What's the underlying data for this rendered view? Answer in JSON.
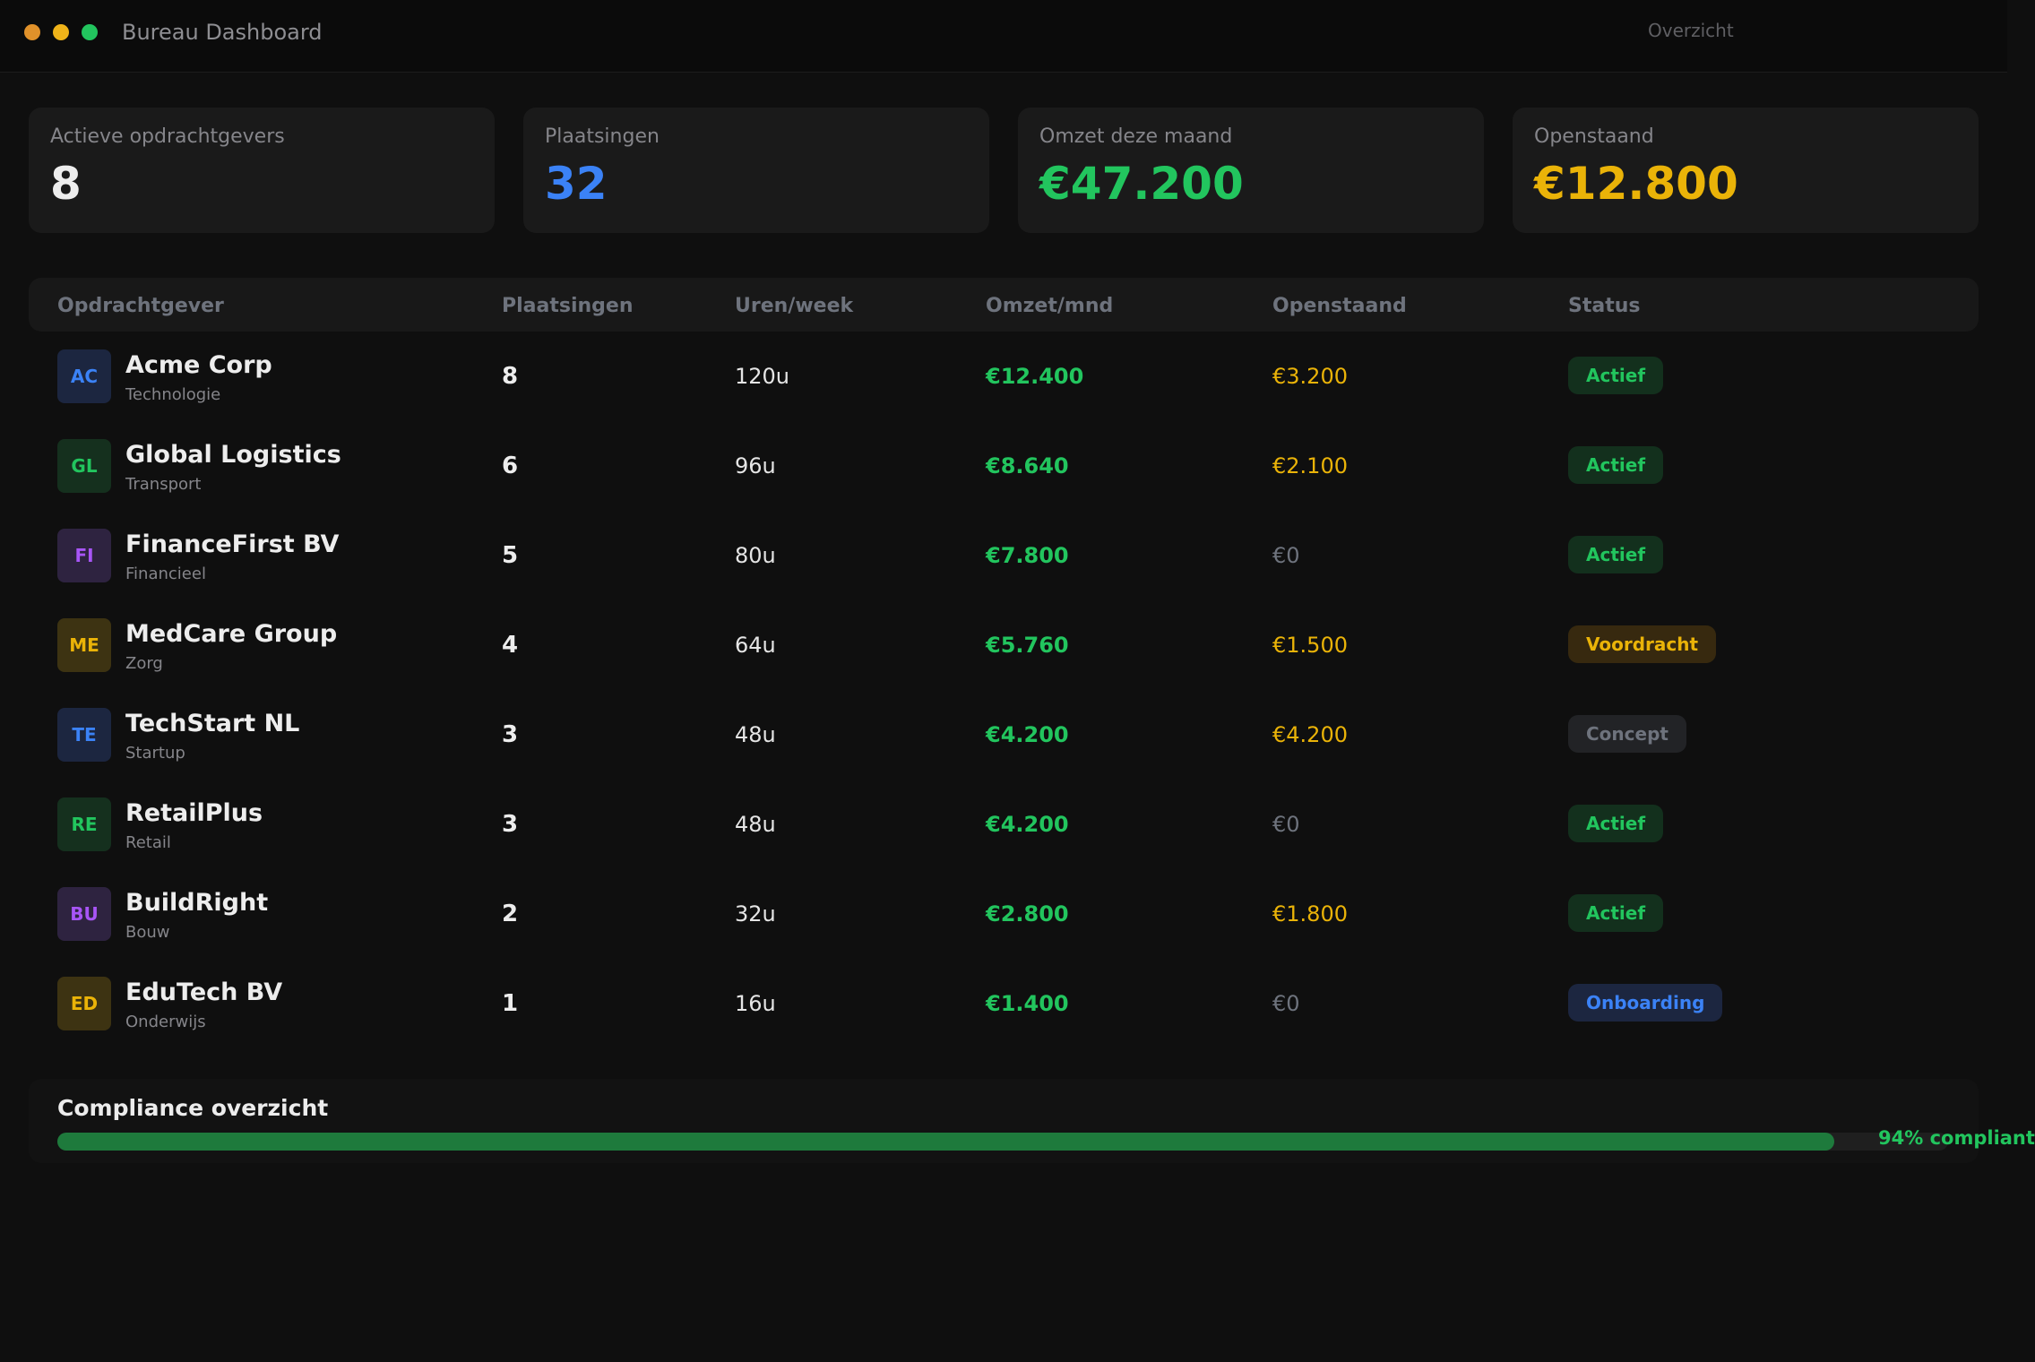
{
  "window": {
    "title": "Bureau Dashboard",
    "tab": "Overzicht"
  },
  "kpis": [
    {
      "label": "Actieve opdrachtgevers",
      "value": "8",
      "color": "#ededed"
    },
    {
      "label": "Plaatsingen",
      "value": "32",
      "color": "#3b82f6"
    },
    {
      "label": "Omzet deze maand",
      "value": "€47.200",
      "color": "#22c55e"
    },
    {
      "label": "Openstaand",
      "value": "€12.800",
      "color": "#eab308"
    }
  ],
  "table": {
    "headers": [
      "Opdrachtgever",
      "Plaatsingen",
      "Uren/week",
      "Omzet/mnd",
      "Openstaand",
      "Status"
    ],
    "rows": [
      {
        "initials": "AC",
        "name": "Acme Corp",
        "sector": "Technologie",
        "placements": "8",
        "hours": "120u",
        "revenue": "€12.400",
        "outstanding": "€3.200",
        "status": "Actief",
        "avatar_color": "#3b82f6",
        "avatar_bg": "#1c2640",
        "outstanding_color": "#eab308",
        "status_color": "#22c55e",
        "status_bg": "#13301d"
      },
      {
        "initials": "GL",
        "name": "Global Logistics",
        "sector": "Transport",
        "placements": "6",
        "hours": "96u",
        "revenue": "€8.640",
        "outstanding": "€2.100",
        "status": "Actief",
        "avatar_color": "#22c55e",
        "avatar_bg": "#15301e",
        "outstanding_color": "#eab308",
        "status_color": "#22c55e",
        "status_bg": "#13301d"
      },
      {
        "initials": "FI",
        "name": "FinanceFirst BV",
        "sector": "Financieel",
        "placements": "5",
        "hours": "80u",
        "revenue": "€7.800",
        "outstanding": "€0",
        "status": "Actief",
        "avatar_color": "#a855f7",
        "avatar_bg": "#2e2340",
        "outstanding_color": "#6e737d",
        "status_color": "#22c55e",
        "status_bg": "#13301d"
      },
      {
        "initials": "ME",
        "name": "MedCare Group",
        "sector": "Zorg",
        "placements": "4",
        "hours": "64u",
        "revenue": "€5.760",
        "outstanding": "€1.500",
        "status": "Voordracht",
        "avatar_color": "#eab308",
        "avatar_bg": "#3d3312",
        "outstanding_color": "#eab308",
        "status_color": "#eab308",
        "status_bg": "#37290f"
      },
      {
        "initials": "TE",
        "name": "TechStart NL",
        "sector": "Startup",
        "placements": "3",
        "hours": "48u",
        "revenue": "€4.200",
        "outstanding": "€4.200",
        "status": "Concept",
        "avatar_color": "#3b82f6",
        "avatar_bg": "#1c2640",
        "outstanding_color": "#eab308",
        "status_color": "#6e737d",
        "status_bg": "#222326"
      },
      {
        "initials": "RE",
        "name": "RetailPlus",
        "sector": "Retail",
        "placements": "3",
        "hours": "48u",
        "revenue": "€4.200",
        "outstanding": "€0",
        "status": "Actief",
        "avatar_color": "#22c55e",
        "avatar_bg": "#15301e",
        "outstanding_color": "#6e737d",
        "status_color": "#22c55e",
        "status_bg": "#13301d"
      },
      {
        "initials": "BU",
        "name": "BuildRight",
        "sector": "Bouw",
        "placements": "2",
        "hours": "32u",
        "revenue": "€2.800",
        "outstanding": "€1.800",
        "status": "Actief",
        "avatar_color": "#a855f7",
        "avatar_bg": "#2e2340",
        "outstanding_color": "#eab308",
        "status_color": "#22c55e",
        "status_bg": "#13301d"
      },
      {
        "initials": "ED",
        "name": "EduTech BV",
        "sector": "Onderwijs",
        "placements": "1",
        "hours": "16u",
        "revenue": "€1.400",
        "outstanding": "€0",
        "status": "Onboarding",
        "avatar_color": "#eab308",
        "avatar_bg": "#3d3312",
        "outstanding_color": "#6e737d",
        "status_color": "#3b82f6",
        "status_bg": "#1c2640"
      }
    ]
  },
  "compliance": {
    "title": "Compliance overzicht",
    "percent": 94,
    "label": "94% compliant"
  }
}
